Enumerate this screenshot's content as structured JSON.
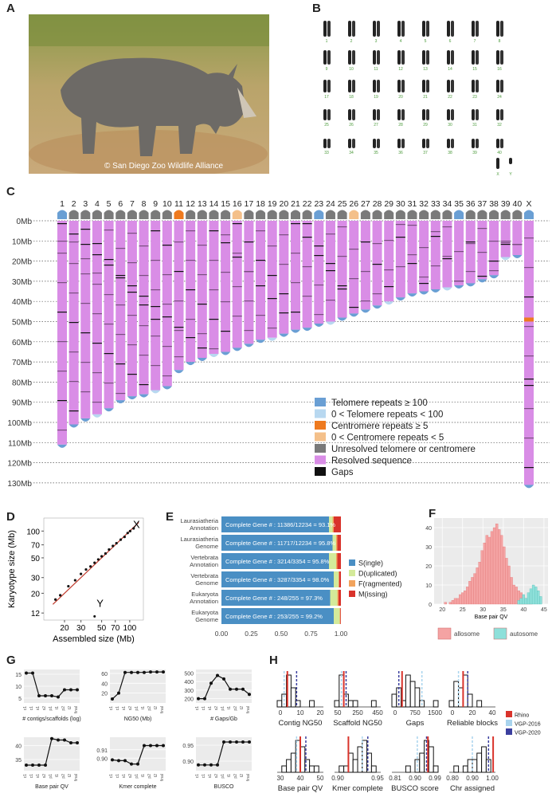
{
  "panels": {
    "A": "A",
    "B": "B",
    "C": "C",
    "D": "D",
    "E": "E",
    "F": "F",
    "G": "G",
    "H": "H"
  },
  "photo": {
    "credit": "© San Diego Zoo Wildlife Alliance"
  },
  "karyotype": {
    "rows": [
      [
        "1",
        "2",
        "3",
        "4",
        "5",
        "6",
        "7",
        "8"
      ],
      [
        "9",
        "10",
        "11",
        "12",
        "13",
        "14",
        "15",
        "16"
      ],
      [
        "17",
        "18",
        "19",
        "20",
        "21",
        "22",
        "23",
        "24"
      ],
      [
        "25",
        "26",
        "27",
        "28",
        "29",
        "30",
        "31",
        "32"
      ],
      [
        "33",
        "34",
        "35",
        "36",
        "37",
        "38",
        "39",
        "40"
      ]
    ],
    "sex": [
      "X",
      "Y"
    ]
  },
  "chromosomes": {
    "names": [
      "1",
      "2",
      "3",
      "4",
      "5",
      "6",
      "7",
      "8",
      "9",
      "10",
      "11",
      "12",
      "13",
      "14",
      "15",
      "16",
      "17",
      "18",
      "19",
      "20",
      "21",
      "22",
      "23",
      "24",
      "25",
      "26",
      "27",
      "28",
      "29",
      "30",
      "31",
      "32",
      "33",
      "34",
      "35",
      "36",
      "37",
      "38",
      "39",
      "40",
      "X"
    ],
    "lengths_mb": [
      111,
      101,
      98,
      96,
      93,
      89,
      87,
      86,
      84,
      82,
      74,
      70,
      68,
      66,
      65,
      63,
      61,
      59,
      58,
      56,
      54,
      53,
      51,
      50,
      48,
      46,
      44,
      42,
      40,
      38,
      36,
      35,
      34,
      33,
      32,
      31,
      29,
      27,
      18,
      17,
      131
    ],
    "top_telomere": [
      "tel",
      "unres",
      "unres",
      "unres",
      "unres",
      "unres",
      "unres",
      "unres",
      "unres",
      "unres",
      "cen",
      "unres",
      "unres",
      "unres",
      "unres",
      "cenlow",
      "unres",
      "unres",
      "unres",
      "unres",
      "unres",
      "unres",
      "tel",
      "unres",
      "unres",
      "cenlow",
      "unres",
      "unres",
      "unres",
      "unres",
      "unres",
      "unres",
      "unres",
      "unres",
      "tel",
      "unres",
      "unres",
      "unres",
      "unres",
      "unres",
      "tel"
    ],
    "axis_ticks": [
      "0Mb",
      "10Mb",
      "20Mb",
      "30Mb",
      "40Mb",
      "50Mb",
      "60Mb",
      "70Mb",
      "80Mb",
      "90Mb",
      "100Mb",
      "110Mb",
      "120Mb",
      "130Mb"
    ],
    "legend": [
      {
        "label": "Telomere repeats ≥ 100",
        "color": "#6a9fd4"
      },
      {
        "label": "0 < Telomere repeats < 100",
        "color": "#b8d8f0"
      },
      {
        "label": "Centromere repeats ≥ 5",
        "color": "#ee7a1f"
      },
      {
        "label": "0 < Centromere repeats < 5",
        "color": "#f4c08a"
      },
      {
        "label": "Unresolved telomere or centromere",
        "color": "#7a7a7a"
      },
      {
        "label": "Resolved sequence",
        "color": "#d98de6"
      },
      {
        "label": "Gaps",
        "color": "#111111"
      }
    ]
  },
  "panelD": {
    "xlabel": "Assembled size (Mb)",
    "ylabel": "Karyotype size (Mb)",
    "xticks": [
      "20",
      "30",
      "50",
      "70",
      "100"
    ],
    "yticks": [
      "12",
      "20",
      "30",
      "50",
      "70",
      "100"
    ],
    "annotations": [
      "X",
      "Y"
    ]
  },
  "panelE": {
    "rows": [
      {
        "label1": "Laurasiatheria",
        "label2": "Annotation",
        "text": "Complete Gene # : 11386/12234 = 93.1%",
        "S": 0.9,
        "D": 0.03,
        "F": 0.01,
        "M": 0.06
      },
      {
        "label1": "Laurasiatheria",
        "label2": "Genome",
        "text": "Complete Gene # : 11717/12234 = 95.8%",
        "S": 0.93,
        "D": 0.03,
        "F": 0.01,
        "M": 0.03
      },
      {
        "label1": "Vertebrata",
        "label2": "Annotation",
        "text": "Complete Gene # : 3214/3354 = 95.8%",
        "S": 0.9,
        "D": 0.06,
        "F": 0.01,
        "M": 0.03
      },
      {
        "label1": "Vertebrata",
        "label2": "Genome",
        "text": "Complete Gene # : 3287/3354 = 98.0%",
        "S": 0.94,
        "D": 0.04,
        "F": 0.005,
        "M": 0.015
      },
      {
        "label1": "Eukaryota",
        "label2": "Annotation",
        "text": "Complete Gene # : 248/255 = 97.3%",
        "S": 0.91,
        "D": 0.06,
        "F": 0.01,
        "M": 0.02
      },
      {
        "label1": "Eukaryota",
        "label2": "Genome",
        "text": "Complete Gene # : 253/255 = 99.2%",
        "S": 0.94,
        "D": 0.05,
        "F": 0.005,
        "M": 0.005
      }
    ],
    "xticks": [
      "0.00",
      "0.25",
      "0.50",
      "0.75",
      "1.00"
    ],
    "legend": [
      {
        "label": "S(ingle)",
        "color": "#4a8fc4"
      },
      {
        "label": "D(uplicated)",
        "color": "#d4ea9a"
      },
      {
        "label": "F(ragmented)",
        "color": "#f2a35c"
      },
      {
        "label": "M(issing)",
        "color": "#d9332b"
      }
    ]
  },
  "panelF": {
    "xlabel": "Base pair QV",
    "xticks": [
      "20",
      "25",
      "30",
      "35",
      "40",
      "45"
    ],
    "yticks": [
      "0",
      "10",
      "20",
      "30",
      "40"
    ],
    "legend": [
      {
        "label": "allosome",
        "color": "#f4a3a3"
      },
      {
        "label": "autosome",
        "color": "#8ee0da"
      }
    ],
    "allosome": [
      1,
      0,
      1,
      2,
      3,
      3,
      5,
      6,
      7,
      9,
      12,
      14,
      16,
      19,
      22,
      28,
      32,
      36,
      35,
      38,
      40,
      42,
      39,
      36,
      30,
      24,
      20,
      14,
      10,
      9,
      7,
      6,
      4,
      3,
      2,
      1
    ],
    "autosome": [
      2,
      3,
      5,
      3,
      6,
      8,
      10,
      9,
      7,
      4
    ]
  },
  "panelG": {
    "xticks": [
      "c1",
      "c1",
      "s1",
      "s2",
      "p1",
      "t1",
      "p2",
      "t2",
      "final"
    ],
    "plots": [
      {
        "label": "# contigs/scaffolds (log)",
        "yticks": [
          "5",
          "10",
          "15"
        ],
        "ymin": 3,
        "ymax": 17,
        "values": [
          15.5,
          15.5,
          6,
          6,
          6,
          5.5,
          8.5,
          8.5,
          8.5
        ]
      },
      {
        "label": "NG50 (Mb)",
        "yticks": [
          "20",
          "40",
          "60"
        ],
        "ymin": 0,
        "ymax": 68,
        "values": [
          8,
          20,
          62,
          62,
          62,
          62,
          63,
          63,
          63
        ]
      },
      {
        "label": "# Gaps/Gb",
        "yticks": [
          "200",
          "300",
          "400",
          "500"
        ],
        "ymin": 150,
        "ymax": 540,
        "values": [
          200,
          200,
          380,
          470,
          430,
          310,
          310,
          310,
          250
        ]
      },
      {
        "label": "Base pair QV",
        "yticks": [
          "35",
          "40"
        ],
        "ymin": 31,
        "ymax": 43,
        "values": [
          33,
          33,
          33,
          33,
          42.5,
          42,
          42,
          41,
          41
        ]
      },
      {
        "label": "Kmer complete",
        "yticks": [
          "0.90",
          "0.91"
        ],
        "ymin": 0.885,
        "ymax": 0.925,
        "values": [
          0.898,
          0.897,
          0.897,
          0.893,
          0.893,
          0.915,
          0.915,
          0.915,
          0.915
        ]
      },
      {
        "label": "BUSCO",
        "yticks": [
          "0.90",
          "0.95"
        ],
        "ymin": 0.87,
        "ymax": 0.975,
        "values": [
          0.888,
          0.888,
          0.888,
          0.888,
          0.96,
          0.96,
          0.96,
          0.96,
          0.96
        ]
      }
    ]
  },
  "panelH": {
    "plots": [
      {
        "label": "Contig NG50",
        "xticks": [
          "0",
          "10",
          "20"
        ],
        "bars": [
          1,
          2,
          5,
          3,
          1,
          0,
          0,
          1,
          0,
          0
        ],
        "rhino": 0.22,
        "v2016": 0.15,
        "v2020": 0.42
      },
      {
        "label": "Scaffold NG50",
        "xticks": [
          "50",
          "250",
          "450"
        ],
        "bars": [
          1,
          5,
          2,
          1,
          1,
          0,
          0,
          0,
          1,
          0
        ],
        "rhino": 0.2,
        "v2016": 0.15,
        "v2020": 0.25
      },
      {
        "label": "Gaps",
        "xticks": [
          "0",
          "750",
          "1500"
        ],
        "bars": [
          2,
          3,
          1,
          5,
          4,
          3,
          1,
          0,
          0,
          1
        ],
        "rhino": 0.22,
        "v2016": 0.65,
        "v2020": 0.15
      },
      {
        "label": "Reliable blocks",
        "xticks": [
          "0",
          "20",
          "40"
        ],
        "bars": [
          1,
          4,
          3,
          5,
          2,
          0,
          1,
          0,
          0,
          0
        ],
        "rhino": 0.3,
        "v2016": 0.2,
        "v2020": 0.4
      },
      {
        "label": "Base pair QV",
        "xticks": [
          "30",
          "40",
          "50"
        ],
        "bars": [
          0,
          1,
          2,
          3,
          5,
          4,
          2,
          1,
          1,
          0
        ],
        "rhino": 0.5,
        "v2016": 0.42,
        "v2020": 0.62
      },
      {
        "label": "Kmer complete",
        "xticks": [
          "0.90",
          "0.95"
        ],
        "bars": [
          0,
          1,
          1,
          3,
          2,
          4,
          5,
          3,
          1,
          0
        ],
        "rhino": 0.3,
        "v2016": 0.6,
        "v2020": 0.72
      },
      {
        "label": "BUSCO score",
        "xticks": [
          "0.81",
          "0.90",
          "0.99"
        ],
        "bars": [
          0,
          0,
          0,
          1,
          0,
          2,
          3,
          5,
          4,
          1
        ],
        "rhino": 0.78,
        "v2016": 0.55,
        "v2020": 0.75
      },
      {
        "label": "Chr assigned",
        "xticks": [
          "0.80",
          "0.90",
          "1.00"
        ],
        "bars": [
          0,
          1,
          0,
          1,
          2,
          2,
          3,
          4,
          2,
          0
        ],
        "rhino": 0.95,
        "v2016": 0.5,
        "v2020": 0.85
      }
    ],
    "legend": [
      {
        "label": "Rhino",
        "color": "#d9332b"
      },
      {
        "label": "VGP-2016",
        "color": "#a9d4ee"
      },
      {
        "label": "VGP-2020",
        "color": "#3b3f9e"
      }
    ]
  }
}
